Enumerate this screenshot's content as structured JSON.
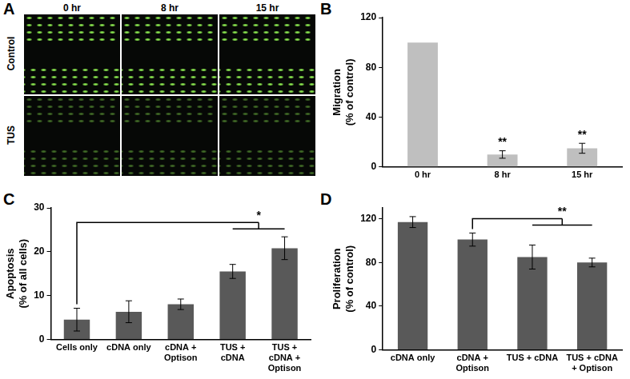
{
  "panel_a": {
    "annotations": [
      "A"
    ],
    "columns": [
      "0 hr",
      "8 hr",
      "15 hr"
    ],
    "rows": [
      "Control",
      "TUS"
    ]
  },
  "chart_data": [
    {
      "type": "bar",
      "annotations": [
        "B"
      ],
      "categories": [
        "0 hr",
        "8 hr",
        "15 hr"
      ],
      "values": [
        100,
        10,
        15
      ],
      "errors": [
        null,
        3,
        4
      ],
      "significance": [
        null,
        "**",
        "**"
      ],
      "y_label": [
        "Migration",
        "(% of control)"
      ],
      "ylim": [
        0,
        120
      ],
      "yticks": [
        0,
        40,
        80,
        120
      ],
      "color": "#bfbfbf",
      "grid": false
    },
    {
      "type": "bar",
      "annotations": [
        "C"
      ],
      "categories": [
        [
          "Cells only"
        ],
        [
          "cDNA only"
        ],
        [
          "cDNA +",
          "Optison"
        ],
        [
          "TUS +",
          "cDNA"
        ],
        [
          "TUS +",
          "cDNA +",
          "Optison"
        ]
      ],
      "values": [
        4.5,
        6.3,
        8,
        15.5,
        20.8
      ],
      "errors": [
        2.6,
        2.5,
        1.2,
        1.6,
        2.6
      ],
      "bracket": {
        "from": "Cells only",
        "to": [
          "TUS + cDNA",
          "TUS + cDNA + Optison"
        ],
        "label": "*"
      },
      "y_label": [
        "Apoptosis",
        "(% of all cells)"
      ],
      "ylim": [
        0,
        30
      ],
      "yticks": [
        0,
        10,
        20,
        30
      ],
      "color": "#595959",
      "grid": false
    },
    {
      "type": "bar",
      "annotations": [
        "D"
      ],
      "categories": [
        [
          "cDNA only"
        ],
        [
          "cDNA +",
          "Optison"
        ],
        [
          "TUS + cDNA"
        ],
        [
          "TUS + cDNA",
          "+ Optison"
        ]
      ],
      "values": [
        117,
        101,
        85,
        80
      ],
      "errors": [
        5,
        6,
        11,
        4
      ],
      "bracket": {
        "from": "cDNA + Optison",
        "to": [
          "TUS + cDNA",
          "TUS + cDNA + Optison"
        ],
        "label": "**"
      },
      "y_label": [
        "Proliferation",
        "(% of control)"
      ],
      "ylim": [
        0,
        130
      ],
      "yticks": [
        0,
        40,
        80,
        120
      ],
      "color": "#595959",
      "grid": false
    }
  ]
}
